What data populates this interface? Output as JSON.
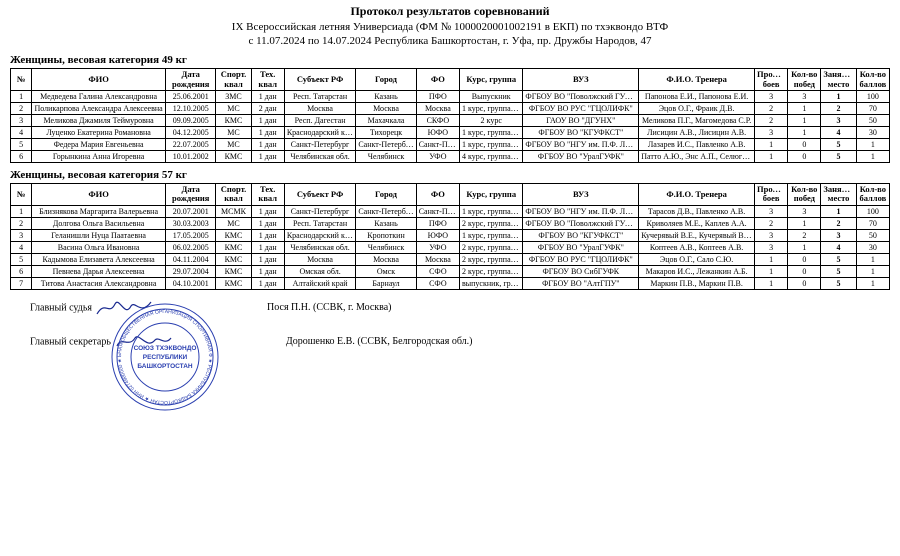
{
  "header": {
    "line1": "Протокол результатов соревнований",
    "line2": "IX Всероссийская летняя Универсиада (ФМ № 1000020001002191 в ЕКП) по тхэквондо ВТФ",
    "line3": "с 11.07.2024 по 14.07.2024 Республика Башкортостан, г. Уфа, пр. Дружбы Народов,  47"
  },
  "columns": {
    "num": "№",
    "fio": "ФИО",
    "birth": "Дата рождения",
    "sport": "Спорт. квал",
    "tech": "Тех. квал",
    "subj": "Субъект РФ",
    "city": "Город",
    "fo": "ФО",
    "kurs": "Курс, группа",
    "vuz": "ВУЗ",
    "coach": "Ф.И.О. Тренера",
    "bouts": "Провед. боев",
    "wins": "Кол-во побед",
    "place": "Занятое место",
    "points": "Кол-во баллов"
  },
  "sections": [
    {
      "title": "Женщины, весовая категория 49 кг",
      "rows": [
        {
          "num": "1",
          "fio": "Медведева Галина Александровна",
          "birth": "25.06.2001",
          "sport": "ЗМС",
          "tech": "1 дан",
          "subj": "Респ. Татарстан",
          "city": "Казань",
          "fo": "ПФО",
          "kurs": "Выпускник",
          "vuz": "ФГБОУ ВО \"Поволжский ГУФКСиТ\"",
          "coach": "Папонова Е.И., Папонова Е.И.",
          "bouts": "3",
          "wins": "3",
          "place": "1",
          "points": "100"
        },
        {
          "num": "2",
          "fio": "Поликарпова Александра Алексеевна",
          "birth": "12.10.2005",
          "sport": "МС",
          "tech": "2 дан",
          "subj": "Москва",
          "city": "Москва",
          "fo": "Москва",
          "kurs": "1 курс, группа Сз-08-23",
          "vuz": "ФГБОУ ВО РУС \"ГЦОЛИФК\"",
          "coach": "Эцов О.Г., Фраик Д.В.",
          "bouts": "2",
          "wins": "1",
          "place": "2",
          "points": "70"
        },
        {
          "num": "3",
          "fio": "Меликова Джамиля Теймуровна",
          "birth": "09.09.2005",
          "sport": "КМС",
          "tech": "1 дан",
          "subj": "Респ. Дагестан",
          "city": "Махачкала",
          "fo": "СКФО",
          "kurs": "2 курс",
          "vuz": "ГАОУ ВО \"ДГУНХ\"",
          "coach": "Меликова П.Г., Магомедова С.Р.",
          "bouts": "2",
          "wins": "1",
          "place": "3",
          "points": "50"
        },
        {
          "num": "4",
          "fio": "Луценко Екатерина Романовна",
          "birth": "04.12.2005",
          "sport": "МС",
          "tech": "1 дан",
          "subj": "Краснодарский край",
          "city": "Тихорецк",
          "fo": "ЮФО",
          "kurs": "1 курс, группа 23з8",
          "vuz": "ФГБОУ ВО \"КГУФКСТ\"",
          "coach": "Лисицин А.В., Лисицин А.В.",
          "bouts": "3",
          "wins": "1",
          "place": "4",
          "points": "30"
        },
        {
          "num": "5",
          "fio": "Федера Мария Евгеньевна",
          "birth": "22.07.2005",
          "sport": "МС",
          "tech": "1 дан",
          "subj": "Санкт-Петербург",
          "city": "Санкт-Петербург",
          "fo": "Санкт-Петербург",
          "kurs": "1 курс, группа 113",
          "vuz": "ФГБОУ ВО \"НГУ им. П.Ф. Лесгафта\"",
          "coach": "Лазарев И.С., Павленко А.В.",
          "bouts": "1",
          "wins": "0",
          "place": "5",
          "points": "1"
        },
        {
          "num": "6",
          "fio": "Горынкина Анна Игоревна",
          "birth": "10.01.2002",
          "sport": "КМС",
          "tech": "1 дан",
          "subj": "Челябинская обл.",
          "city": "Челябинск",
          "fo": "УФО",
          "kurs": "4 курс, группа 411",
          "vuz": "ФГБОУ ВО \"УралГУФК\"",
          "coach": "Патто А.Ю., Энс А.П., Селюгина А.А.",
          "bouts": "1",
          "wins": "0",
          "place": "5",
          "points": "1"
        }
      ]
    },
    {
      "title": "Женщины, весовая категория 57 кг",
      "rows": [
        {
          "num": "1",
          "fio": "Близнякова Маргарита Валерьевна",
          "birth": "20.07.2001",
          "sport": "МСМК",
          "tech": "1 дан",
          "subj": "Санкт-Петербург",
          "city": "Санкт-Петербург",
          "fo": "Санкт-Петербург",
          "kurs": "1 курс, группа 113",
          "vuz": "ФГБОУ ВО \"НГУ им. П.Ф. Лесгафта\"",
          "coach": "Тарасов Д.В., Павленко А.В.",
          "bouts": "3",
          "wins": "3",
          "place": "1",
          "points": "100"
        },
        {
          "num": "2",
          "fio": "Долгова Ольга Васильевна",
          "birth": "30.03.2003",
          "sport": "МС",
          "tech": "1 дан",
          "subj": "Респ. Татарстан",
          "city": "Казань",
          "fo": "ПФО",
          "kurs": "2 курс, группа 22304",
          "vuz": "ФГБОУ ВО \"Поволжский ГУФКСиТ\"",
          "coach": "Криволяев М.Е., Каплев А.А.",
          "bouts": "2",
          "wins": "1",
          "place": "2",
          "points": "70"
        },
        {
          "num": "3",
          "fio": "Геланишли Нуца Паатаевна",
          "birth": "17.05.2005",
          "sport": "КМС",
          "tech": "1 дан",
          "subj": "Краснодарский край",
          "city": "Кропоткин",
          "fo": "ЮФО",
          "kurs": "1 курс, группа 23з8",
          "vuz": "ФГБОУ ВО \"КГУФКСТ\"",
          "coach": "Кучерявый В.Е., Кучерявый В.Е.",
          "bouts": "3",
          "wins": "2",
          "place": "3",
          "points": "50"
        },
        {
          "num": "4",
          "fio": "Васина Ольга Ивановна",
          "birth": "06.02.2005",
          "sport": "КМС",
          "tech": "1 дан",
          "subj": "Челябинская обл.",
          "city": "Челябинск",
          "fo": "УФО",
          "kurs": "2 курс, группа 211",
          "vuz": "ФГБОУ ВО \"УралГУФК\"",
          "coach": "Коптеев А.В., Коптеев А.В.",
          "bouts": "3",
          "wins": "1",
          "place": "4",
          "points": "30"
        },
        {
          "num": "5",
          "fio": "Кадымова Елизавета Алексеевна",
          "birth": "04.11.2004",
          "sport": "КМС",
          "tech": "1 дан",
          "subj": "Москва",
          "city": "Москва",
          "fo": "Москва",
          "kurs": "2 курс, группа Сз-08-22",
          "vuz": "ФГБОУ ВО РУС \"ГЦОЛИФК\"",
          "coach": "Эцов О.Г., Сало С.Ю.",
          "bouts": "1",
          "wins": "0",
          "place": "5",
          "points": "1"
        },
        {
          "num": "6",
          "fio": "Певнева Дарья Алексеевна",
          "birth": "29.07.2004",
          "sport": "КМС",
          "tech": "1 дан",
          "subj": "Омская обл.",
          "city": "Омск",
          "fo": "СФО",
          "kurs": "2 курс, группа СТЖ226",
          "vuz": "ФГБОУ ВО СибГУФК",
          "coach": "Макаров И.С., Лежанкин А.Б.",
          "bouts": "1",
          "wins": "0",
          "place": "5",
          "points": "1"
        },
        {
          "num": "7",
          "fio": "Титова Анастасия Александровна",
          "birth": "04.10.2001",
          "sport": "КМС",
          "tech": "1 дан",
          "subj": "Алтайский край",
          "city": "Барнаул",
          "fo": "СФО",
          "kurs": "выпускник, группа б032д",
          "vuz": "ФГБОУ ВО \"АлтГПУ\"",
          "coach": "Маркин П.В., Маркин П.В.",
          "bouts": "1",
          "wins": "0",
          "place": "5",
          "points": "1"
        }
      ]
    }
  ],
  "footer": {
    "chief_judge_label": "Главный судья",
    "chief_judge_name": "Пося П.Н. (ССВК, г. Москва)",
    "chief_secretary_label": "Главный секретарь",
    "chief_secretary_name": "Дорошенко Е.В. (ССВК, Белгородская обл.)"
  },
  "stamp": {
    "outer_text_top": "СОЮЗ ТАЭКВОНДО",
    "outer_text_bottom": "РЕГИОНАЛЬНАЯ ОБЩЕСТВЕННАЯ ОРГАНИЗАЦИЯ",
    "center_line1": "СОЮЗ ТХЭКВОНДО",
    "center_line2": "РЕСПУБЛИКИ",
    "center_line3": "БАШКОРТОСТАН",
    "color": "#2a3fb0"
  }
}
